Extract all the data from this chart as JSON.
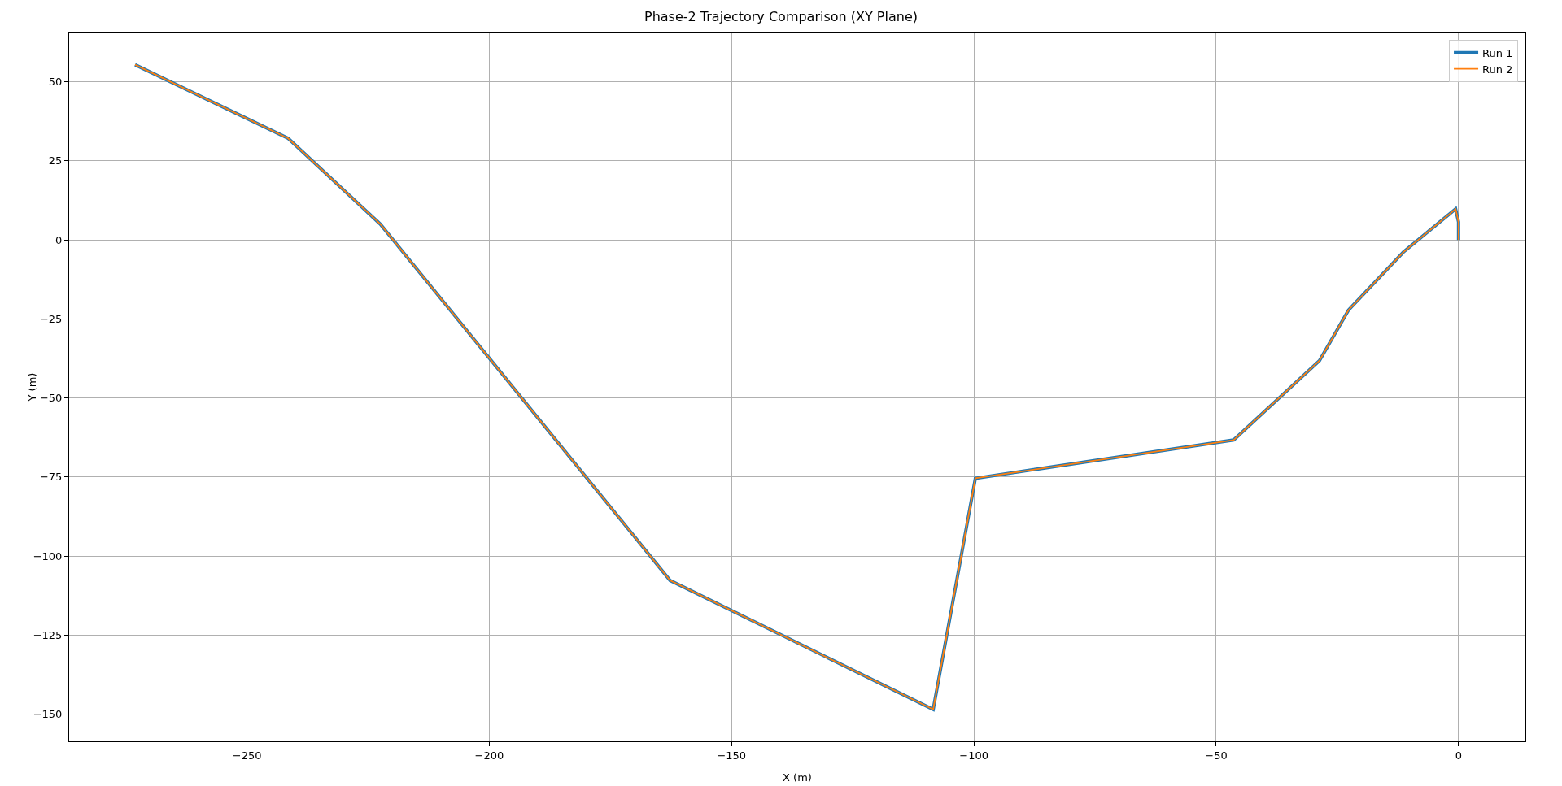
{
  "chart_data": {
    "type": "line",
    "title": "Phase-2 Trajectory Comparison (XY Plane)",
    "xlabel": "X (m)",
    "ylabel": "Y (m)",
    "series": [
      {
        "name": "Run 1",
        "color": "#1f77b4",
        "x": [
          -273.1,
          -241.5,
          -222.5,
          -162.7,
          -108.4,
          -99.7,
          -46.4,
          -28.7,
          -22.7,
          -11.4,
          -0.6,
          0,
          0
        ],
        "values": [
          55.4,
          32.1,
          5.0,
          -107.7,
          -148.5,
          -75.4,
          -63.3,
          -38.2,
          -22.2,
          -3.9,
          9.8,
          5.7,
          0
        ]
      },
      {
        "name": "Run 2",
        "color": "#ff7f0e",
        "x": [
          -273.1,
          -241.5,
          -222.5,
          -162.7,
          -108.4,
          -99.7,
          -46.4,
          -28.7,
          -22.7,
          -11.4,
          -0.6,
          0,
          0
        ],
        "values": [
          55.4,
          32.1,
          5.0,
          -107.7,
          -148.5,
          -75.4,
          -63.3,
          -38.2,
          -22.2,
          -3.9,
          9.8,
          5.7,
          0
        ]
      }
    ],
    "xlim": [
      -286.7,
      13.8
    ],
    "ylim": [
      -158.6,
      65.6
    ],
    "xticks": [
      -250,
      -200,
      -150,
      -100,
      -50,
      0
    ],
    "yticks": [
      -150,
      -125,
      -100,
      -75,
      -50,
      -25,
      0,
      25,
      50
    ],
    "grid": true,
    "legend": "top right",
    "marker": "none",
    "line_style": "solid"
  }
}
